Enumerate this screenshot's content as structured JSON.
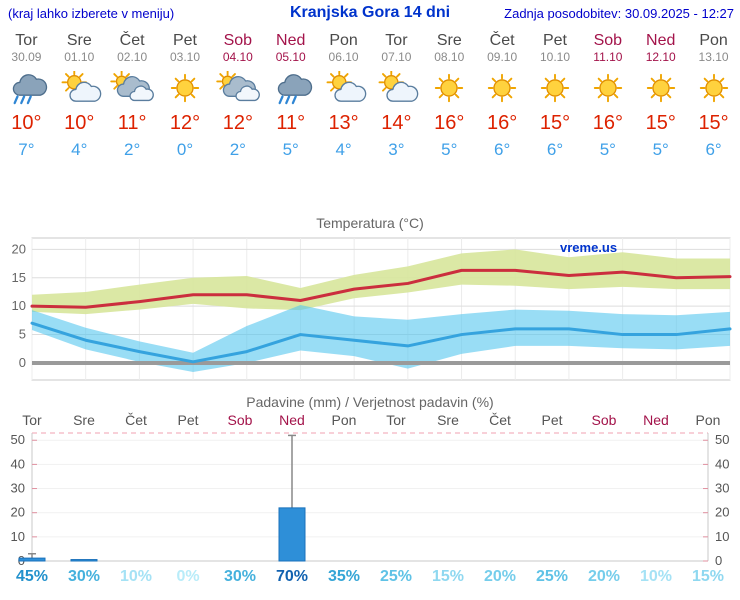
{
  "header": {
    "left_note": "(kraj lahko izberete v meniju)",
    "title": "Kranjska Gora 14 dni",
    "last_update": "Zadnja posodobitev: 30.09.2025 - 12:27"
  },
  "forecast": {
    "days": [
      {
        "day": "Tor",
        "date": "30.09",
        "weekend": false,
        "icon": "rain",
        "high": "10",
        "low": "7"
      },
      {
        "day": "Sre",
        "date": "01.10",
        "weekend": false,
        "icon": "partly",
        "high": "10",
        "low": "4"
      },
      {
        "day": "Čet",
        "date": "02.10",
        "weekend": false,
        "icon": "cloudy",
        "high": "11",
        "low": "2"
      },
      {
        "day": "Pet",
        "date": "03.10",
        "weekend": false,
        "icon": "sunny",
        "high": "12",
        "low": "0"
      },
      {
        "day": "Sob",
        "date": "04.10",
        "weekend": true,
        "icon": "cloudy",
        "high": "12",
        "low": "2"
      },
      {
        "day": "Ned",
        "date": "05.10",
        "weekend": true,
        "icon": "rain",
        "high": "11",
        "low": "5"
      },
      {
        "day": "Pon",
        "date": "06.10",
        "weekend": false,
        "icon": "partly",
        "high": "13",
        "low": "4"
      },
      {
        "day": "Tor",
        "date": "07.10",
        "weekend": false,
        "icon": "partly",
        "high": "14",
        "low": "3"
      },
      {
        "day": "Sre",
        "date": "08.10",
        "weekend": false,
        "icon": "sunny",
        "high": "16",
        "low": "5"
      },
      {
        "day": "Čet",
        "date": "09.10",
        "weekend": false,
        "icon": "sunny",
        "high": "16",
        "low": "6"
      },
      {
        "day": "Pet",
        "date": "10.10",
        "weekend": false,
        "icon": "sunny",
        "high": "15",
        "low": "6"
      },
      {
        "day": "Sob",
        "date": "11.10",
        "weekend": true,
        "icon": "sunny",
        "high": "16",
        "low": "5"
      },
      {
        "day": "Ned",
        "date": "12.10",
        "weekend": true,
        "icon": "sunny",
        "high": "15",
        "low": "5"
      },
      {
        "day": "Pon",
        "date": "13.10",
        "weekend": false,
        "icon": "sunny",
        "high": "15",
        "low": "6"
      }
    ]
  },
  "chart_data": [
    {
      "type": "line",
      "title": "Temperatura (°C)",
      "watermark": "vreme.us",
      "watermark_color": "#0033cc",
      "categories": [
        "Tor",
        "Sre",
        "Čet",
        "Pet",
        "Sob",
        "Ned",
        "Pon",
        "Tor",
        "Sre",
        "Čet",
        "Pet",
        "Sob",
        "Ned",
        "Pon"
      ],
      "ylim": [
        -3,
        22
      ],
      "yticks": [
        0,
        5,
        10,
        15,
        20
      ],
      "zero_line_color": "#9a9a9a",
      "series": [
        {
          "name": "max-temperature",
          "color": "#cb2e3e",
          "values": [
            10,
            9.8,
            10.8,
            12,
            12,
            11,
            13,
            14,
            16.3,
            16.3,
            15.4,
            16,
            15,
            15.2
          ]
        },
        {
          "name": "min-temperature",
          "color": "#35a3de",
          "values": [
            7,
            4,
            2,
            0.2,
            2,
            5,
            4,
            3,
            5,
            6,
            6,
            5,
            5,
            6
          ]
        }
      ],
      "bands": [
        {
          "name": "max-temperature-range",
          "color": "#d7e59b",
          "opacity": 0.9,
          "upper": [
            12,
            12.5,
            13.8,
            15,
            15.3,
            13.2,
            15.5,
            17,
            19.3,
            20,
            18.6,
            19.5,
            18.4,
            18.4
          ],
          "lower": [
            9,
            8.6,
            9.4,
            10.4,
            9.6,
            9.3,
            11.4,
            12.4,
            13.8,
            13.6,
            13,
            13.4,
            13,
            13
          ]
        },
        {
          "name": "min-temperature-range",
          "color": "#55c6ee",
          "opacity": 0.6,
          "upper": [
            9.3,
            6.2,
            3.8,
            1.8,
            6.5,
            10.2,
            8.2,
            7.6,
            8.6,
            9.4,
            9.2,
            8.6,
            8.4,
            9
          ],
          "lower": [
            5.8,
            2.4,
            0.2,
            -1.6,
            0,
            2.2,
            1.2,
            -1,
            1.6,
            3,
            3,
            2.6,
            2.4,
            3
          ]
        }
      ]
    },
    {
      "type": "bar",
      "title": "Padavine (mm) / Verjetnost padavin (%)",
      "categories": [
        {
          "label": "Tor",
          "weekend": false
        },
        {
          "label": "Sre",
          "weekend": false
        },
        {
          "label": "Čet",
          "weekend": false
        },
        {
          "label": "Pet",
          "weekend": false
        },
        {
          "label": "Sob",
          "weekend": true
        },
        {
          "label": "Ned",
          "weekend": true
        },
        {
          "label": "Pon",
          "weekend": false
        },
        {
          "label": "Tor",
          "weekend": false
        },
        {
          "label": "Sre",
          "weekend": false
        },
        {
          "label": "Čet",
          "weekend": false
        },
        {
          "label": "Pet",
          "weekend": false
        },
        {
          "label": "Sob",
          "weekend": true
        },
        {
          "label": "Ned",
          "weekend": true
        },
        {
          "label": "Pon",
          "weekend": false
        }
      ],
      "ylim": [
        0,
        53
      ],
      "yticks": [
        0,
        10,
        20,
        30,
        40,
        50
      ],
      "bar_color": "#2e8fd8",
      "bar_border_color": "#1a72bb",
      "values": [
        1.2,
        0.6,
        0,
        0,
        0,
        22,
        0,
        0,
        0,
        0,
        0,
        0,
        0,
        0
      ],
      "whiskers": [
        {
          "i": 0,
          "lo": 0,
          "hi": 3
        },
        {
          "i": 5,
          "lo": 3,
          "hi": 52
        }
      ],
      "probabilities": [
        {
          "pct": "45%",
          "color": "#2291cc"
        },
        {
          "pct": "30%",
          "color": "#45b1dd"
        },
        {
          "pct": "10%",
          "color": "#a5e2f5"
        },
        {
          "pct": "0%",
          "color": "#b8ecf9"
        },
        {
          "pct": "30%",
          "color": "#45b1dd"
        },
        {
          "pct": "70%",
          "color": "#1262b0"
        },
        {
          "pct": "35%",
          "color": "#35a5d6"
        },
        {
          "pct": "25%",
          "color": "#5fc2e6"
        },
        {
          "pct": "15%",
          "color": "#8fd8f0"
        },
        {
          "pct": "20%",
          "color": "#75cdeb"
        },
        {
          "pct": "25%",
          "color": "#5fc2e6"
        },
        {
          "pct": "20%",
          "color": "#75cdeb"
        },
        {
          "pct": "10%",
          "color": "#a5e2f5"
        },
        {
          "pct": "15%",
          "color": "#8fd8f0"
        }
      ]
    }
  ]
}
